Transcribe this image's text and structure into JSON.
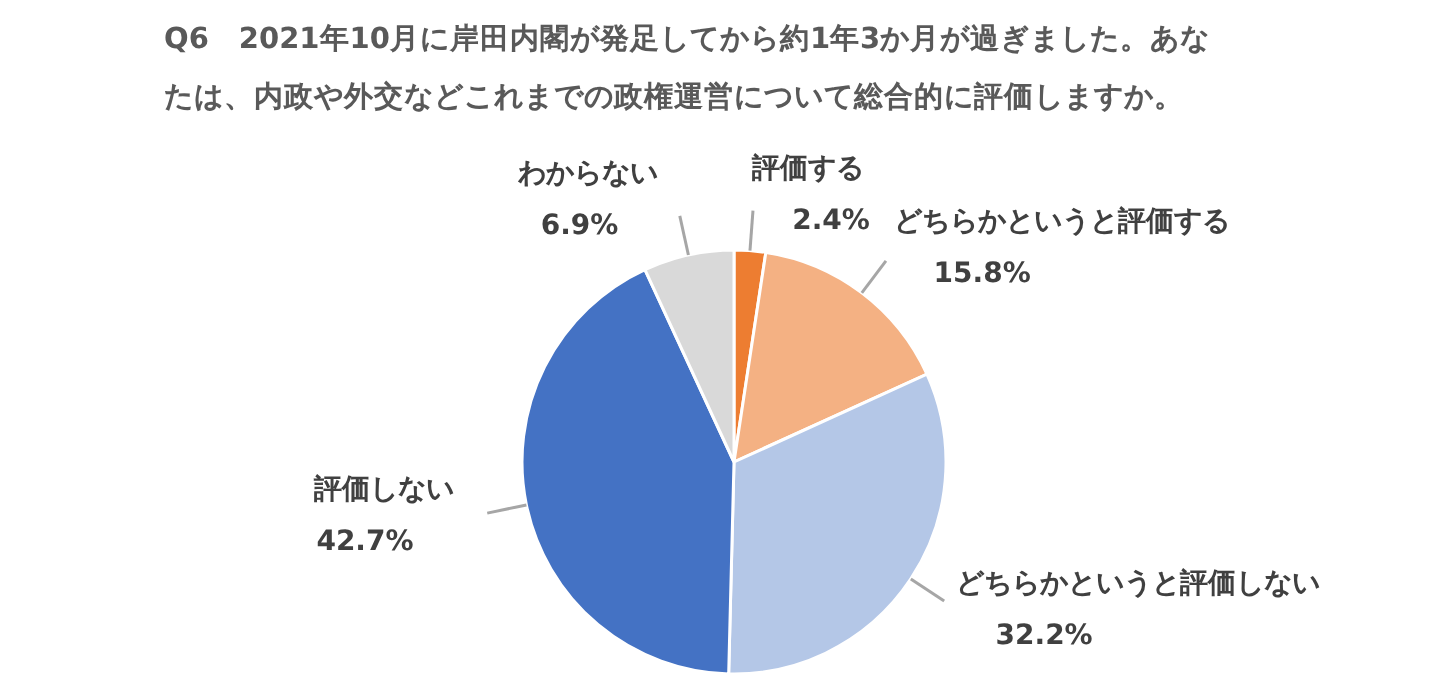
{
  "chart_data": {
    "type": "pie",
    "title": "Q6　2021年10月に岸田内閣が発足してから約1年3か月が過ぎました。あなたは、内政や外交などこれまでの政権運営について総合的に評価しますか。",
    "categories": [
      "評価する",
      "どちらかというと評価する",
      "どちらかというと評価しない",
      "評価しない",
      "わからない"
    ],
    "values": [
      2.4,
      15.8,
      32.2,
      42.7,
      6.9
    ],
    "value_labels": [
      "2.4%",
      "15.8%",
      "32.2%",
      "42.7%",
      "6.9%"
    ],
    "colors": [
      "#ed7d31",
      "#f4b183",
      "#b4c7e7",
      "#4472c4",
      "#d9d9d9"
    ]
  }
}
